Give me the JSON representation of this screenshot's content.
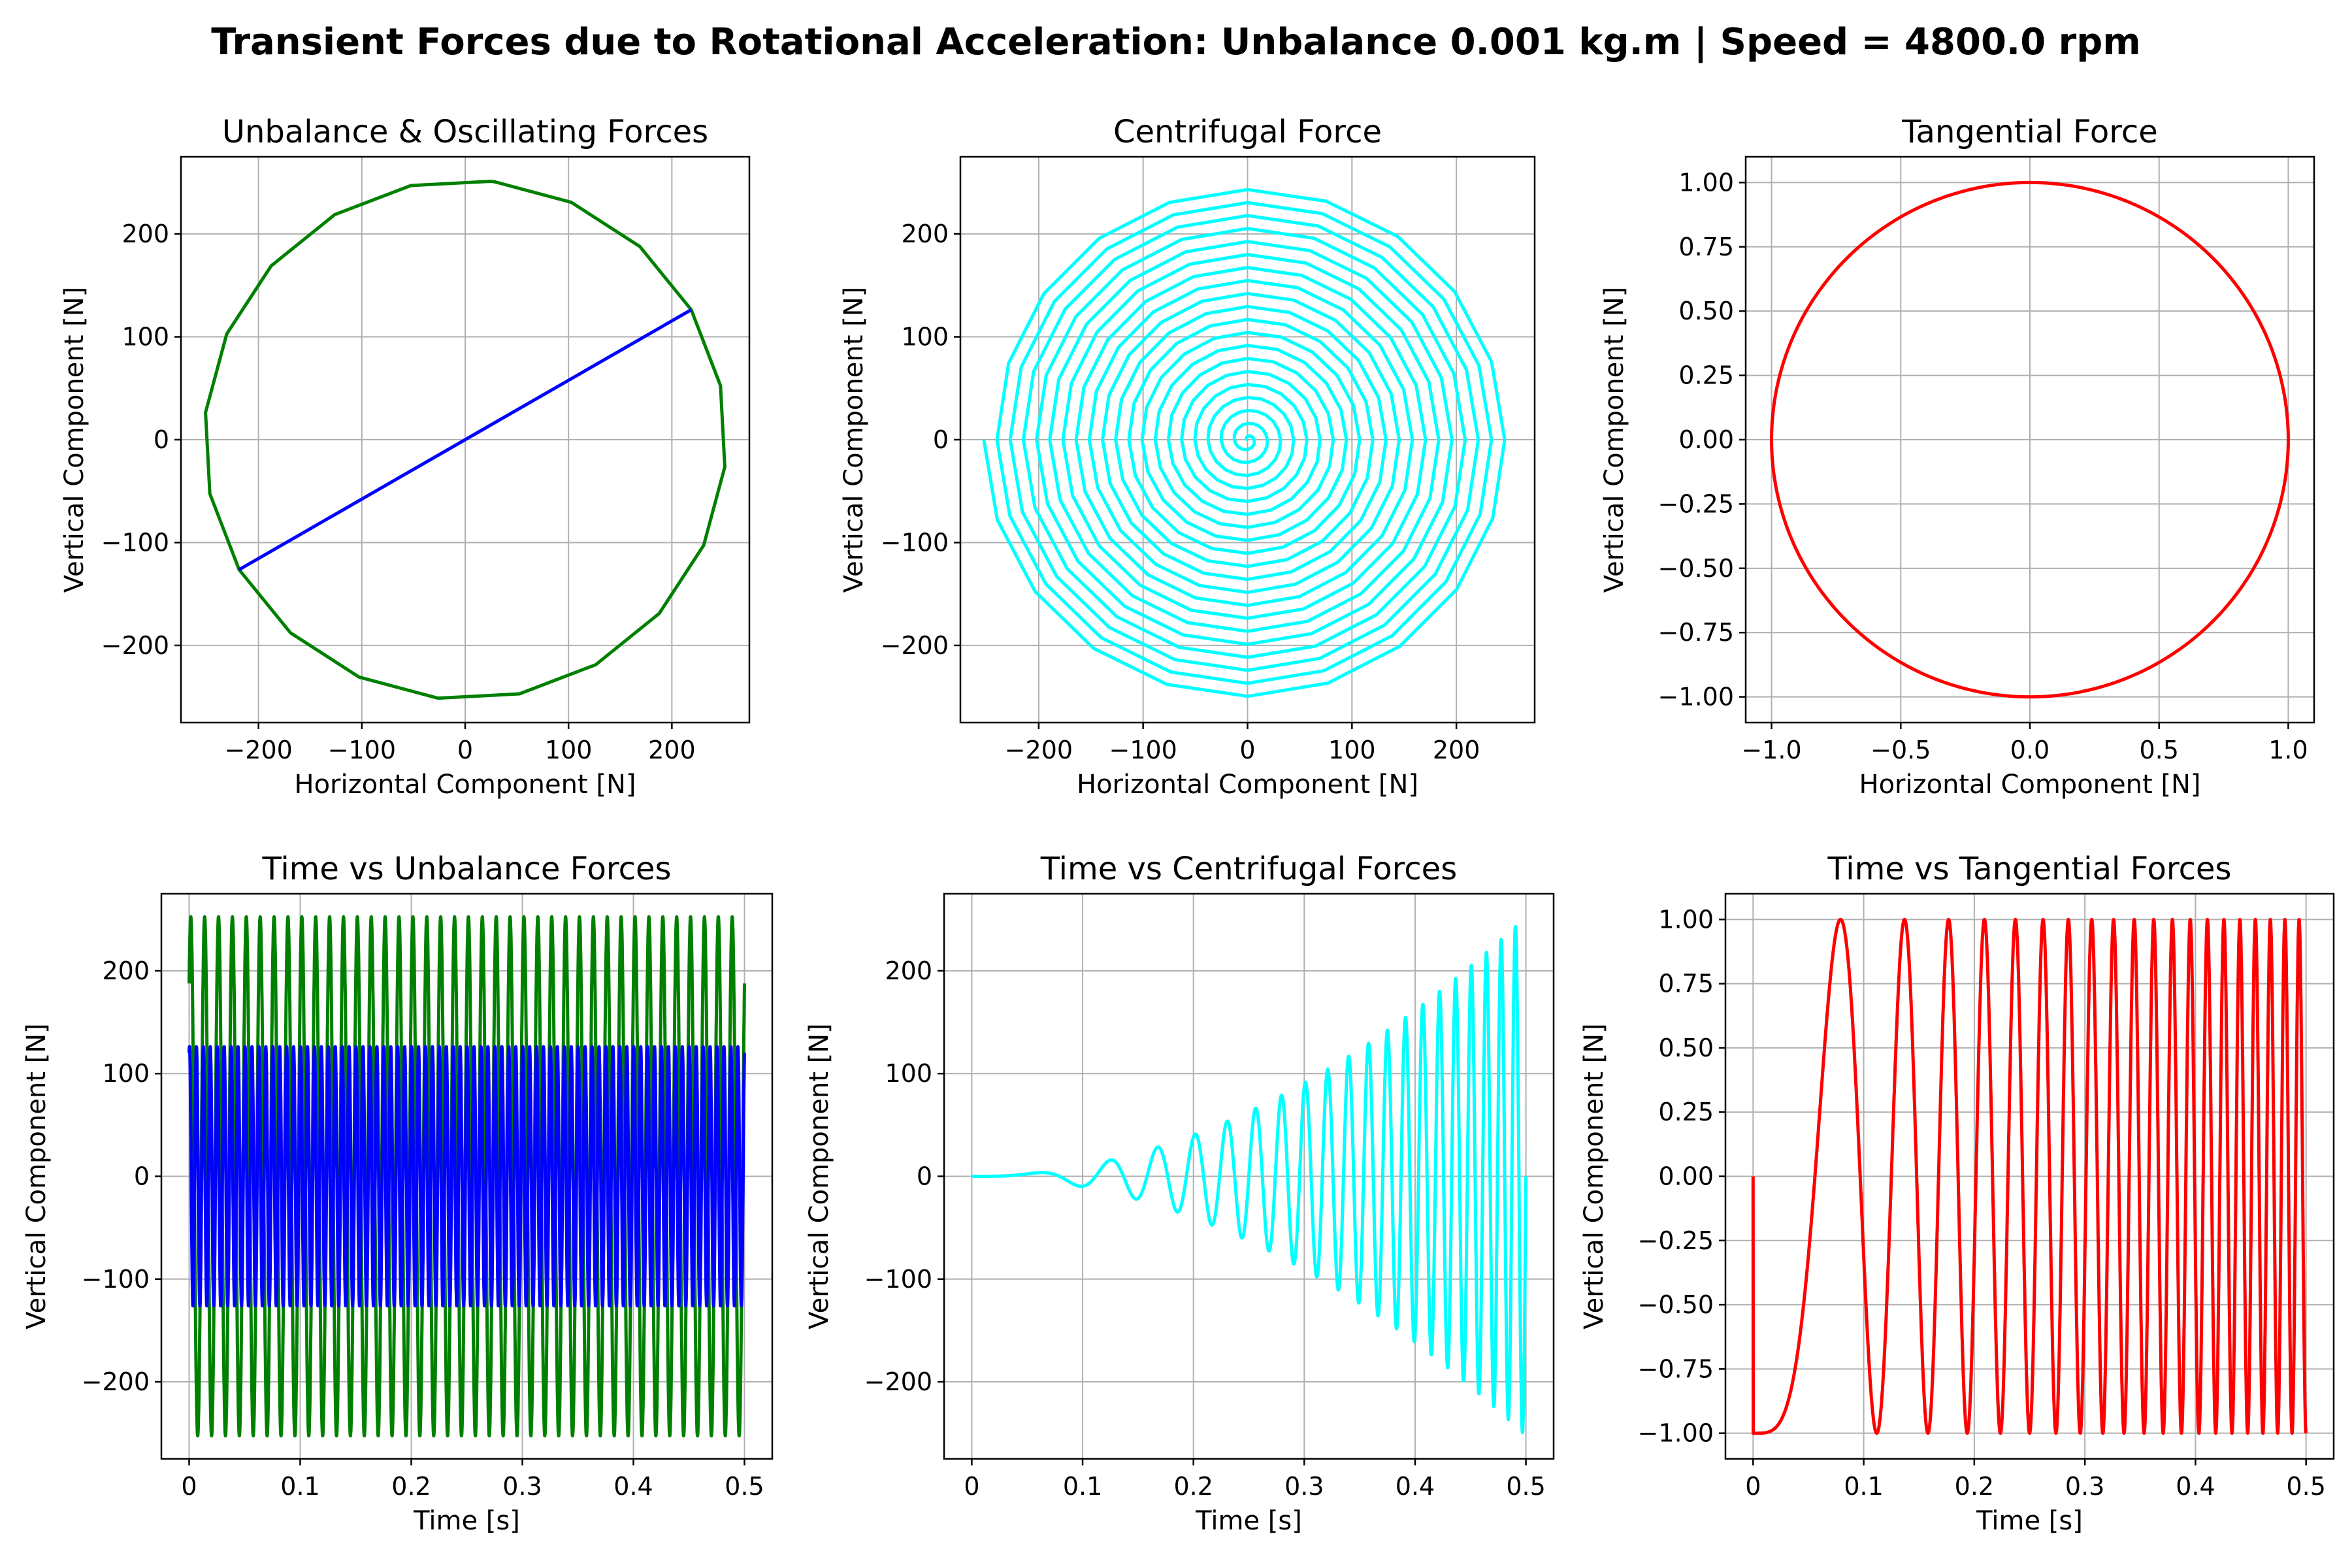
{
  "figure": {
    "title": "Transient Forces due to Rotational Acceleration: Unbalance 0.001 kg.m | Speed = 4800.0 rpm"
  },
  "chart_data": [
    {
      "id": "unbalance-oscillating",
      "type": "line",
      "title": "Unbalance & Oscillating Forces",
      "xlabel": "Horizontal Component [N]",
      "ylabel": "Vertical Component [N]",
      "xlim": [
        -275,
        275
      ],
      "ylim": [
        -275,
        275
      ],
      "xticks": [
        -200,
        -100,
        0,
        100,
        200
      ],
      "yticks": [
        -200,
        -100,
        0,
        100,
        200
      ],
      "grid": true,
      "series": [
        {
          "color": "#008000",
          "kind": "polygon",
          "radius": 252.6,
          "vertices": 20,
          "phase_deg": 84
        },
        {
          "color": "#0000ff",
          "kind": "segment",
          "x": [
            -218.8,
            218.8
          ],
          "y": [
            -126.3,
            126.3
          ]
        }
      ]
    },
    {
      "id": "centrifugal",
      "type": "line",
      "title": "Centrifugal Force",
      "xlabel": "Horizontal Component [N]",
      "ylabel": "",
      "ylabel2": "Vertical Component [N]",
      "xlim": [
        -275,
        275
      ],
      "ylim": [
        -275,
        275
      ],
      "xticks": [
        -200,
        -100,
        0,
        100,
        200
      ],
      "yticks": [
        -200,
        -100,
        0,
        100,
        200
      ],
      "grid": true,
      "series": [
        {
          "color": "#00ffff",
          "kind": "spiral",
          "r_start": 0,
          "r_end": 252.6,
          "turns": 20,
          "points_per_turn": 20,
          "start_angle_deg": 180
        }
      ]
    },
    {
      "id": "tangential",
      "type": "line",
      "title": "Tangential Force",
      "xlabel": "Horizontal Component [N]",
      "ylabel": "Vertical Component [N]",
      "xlim": [
        -1.1,
        1.1
      ],
      "ylim": [
        -1.1,
        1.1
      ],
      "xticks": [
        -1.0,
        -0.5,
        0.0,
        0.5,
        1.0
      ],
      "xtick_labels": [
        "−1.0",
        "−0.5",
        "0.0",
        "0.5",
        "1.0"
      ],
      "yticks": [
        -1.0,
        -0.75,
        -0.5,
        -0.25,
        0.0,
        0.25,
        0.5,
        0.75,
        1.0
      ],
      "ytick_labels": [
        "−1.00",
        "−0.75",
        "−0.50",
        "−0.25",
        "0.00",
        "0.25",
        "0.50",
        "0.75",
        "1.00"
      ],
      "grid": true,
      "series": [
        {
          "color": "#ff0000",
          "kind": "circle",
          "radius": 1.0
        }
      ]
    },
    {
      "id": "time-unbalance",
      "type": "line",
      "title": "Time vs Unbalance Forces",
      "xlabel": "Time [s]",
      "ylabel": "Vertical Component [N]",
      "xlim": [
        -0.025,
        0.525
      ],
      "ylim": [
        -275,
        275
      ],
      "xticks": [
        0.0,
        0.1,
        0.2,
        0.3,
        0.4,
        0.5
      ],
      "yticks": [
        -200,
        -100,
        0,
        100,
        200
      ],
      "grid": true,
      "series": [
        {
          "color": "#008000",
          "kind": "sine",
          "t_end": 0.5,
          "amplitude": 252.6,
          "cycles": 40,
          "phase_deg": 48
        },
        {
          "color": "#0000ff",
          "kind": "sine",
          "t_end": 0.5,
          "amplitude": 126.3,
          "cycles": 80,
          "phase_deg": 72
        }
      ]
    },
    {
      "id": "time-centrifugal",
      "type": "line",
      "title": "Time vs Centrifugal Forces",
      "xlabel": "Time [s]",
      "ylabel": "Vertical Component [N]",
      "xlim": [
        -0.025,
        0.525
      ],
      "ylim": [
        -275,
        275
      ],
      "xticks": [
        0.0,
        0.1,
        0.2,
        0.3,
        0.4,
        0.5
      ],
      "yticks": [
        -200,
        -100,
        0,
        100,
        200
      ],
      "grid": true,
      "series": [
        {
          "color": "#00ffff",
          "kind": "chirp-growing",
          "t_end": 0.5,
          "amplitude_end": 252.6,
          "total_cycles": 20
        }
      ]
    },
    {
      "id": "time-tangential",
      "type": "line",
      "title": "Time vs Tangential Forces",
      "xlabel": "Time [s]",
      "ylabel": "Vertical Component [N]",
      "xlim": [
        -0.025,
        0.525
      ],
      "ylim": [
        -1.1,
        1.1
      ],
      "xticks": [
        0.0,
        0.1,
        0.2,
        0.3,
        0.4,
        0.5
      ],
      "yticks": [
        -1.0,
        -0.75,
        -0.5,
        -0.25,
        0.0,
        0.25,
        0.5,
        0.75,
        1.0
      ],
      "ytick_labels": [
        "−1.00",
        "−0.75",
        "−0.50",
        "−0.25",
        "0.00",
        "0.25",
        "0.50",
        "0.75",
        "1.00"
      ],
      "grid": true,
      "series": [
        {
          "color": "#ff0000",
          "kind": "chirp-unit",
          "t_end": 0.5,
          "total_cycles": 20
        }
      ]
    }
  ]
}
